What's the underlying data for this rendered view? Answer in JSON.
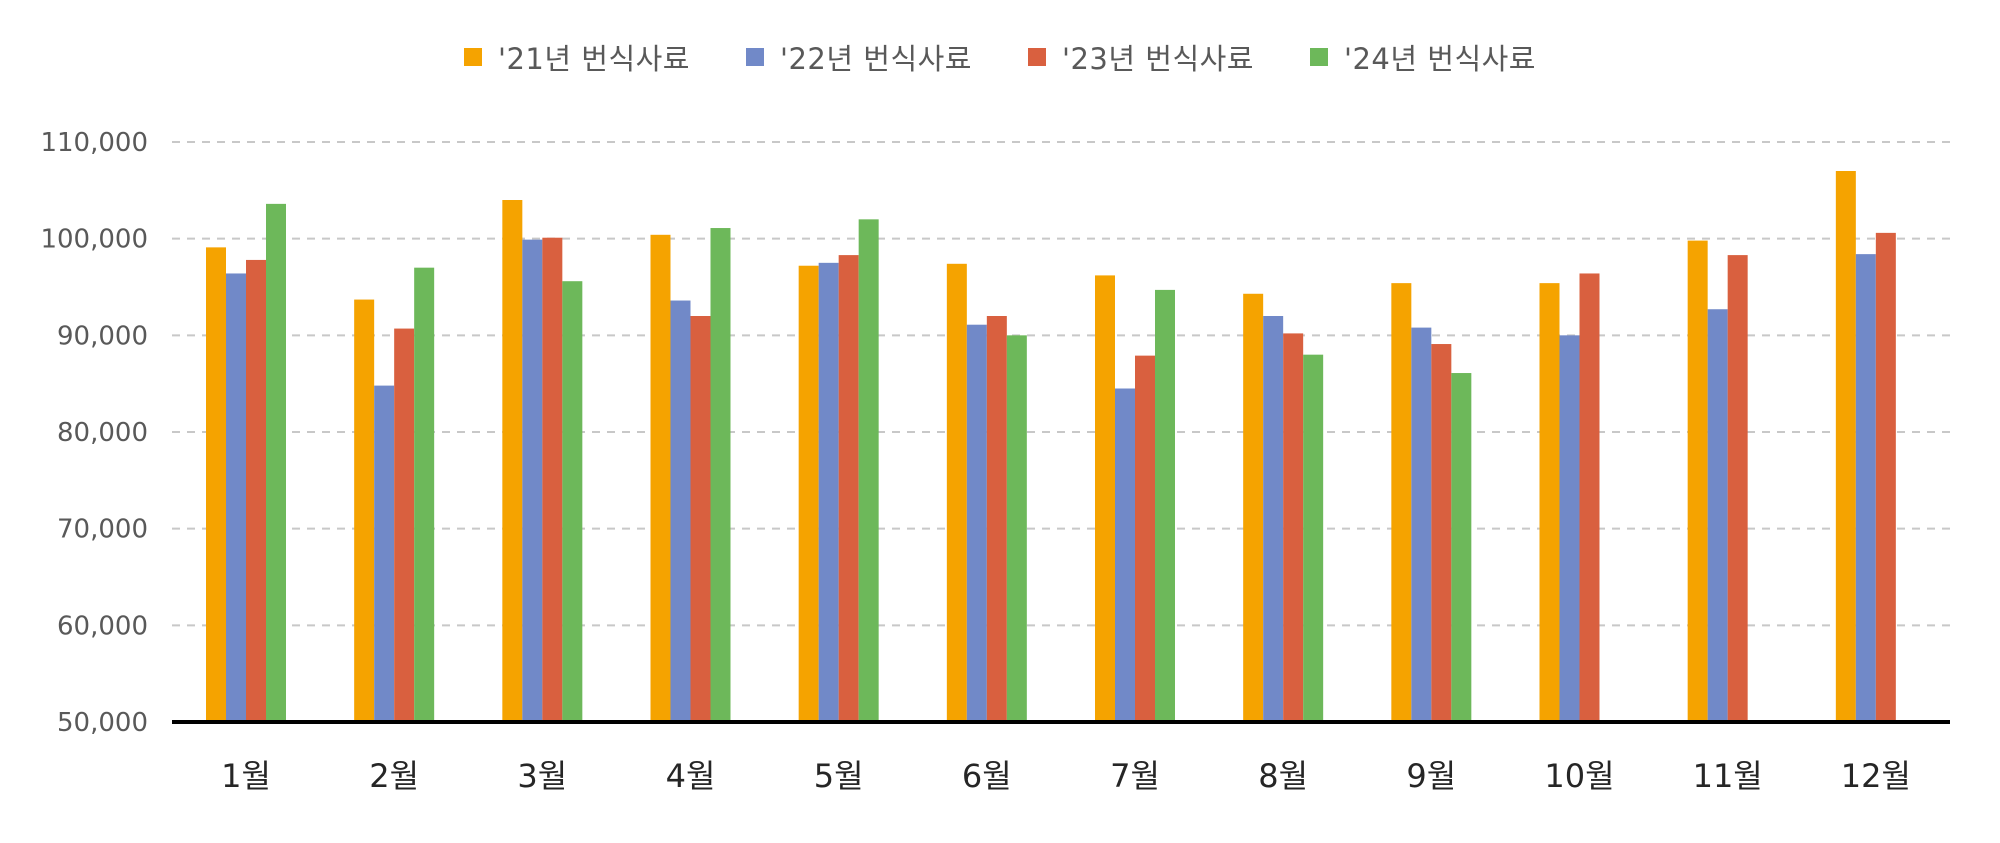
{
  "chart_data": {
    "type": "bar",
    "categories": [
      "1월",
      "2월",
      "3월",
      "4월",
      "5월",
      "6월",
      "7월",
      "8월",
      "9월",
      "10월",
      "11월",
      "12월"
    ],
    "series": [
      {
        "name": "'21년 번식사료",
        "color": "#F5A300",
        "values": [
          99100,
          93700,
          104000,
          100400,
          97200,
          97400,
          96200,
          94300,
          95400,
          95400,
          99800,
          107000
        ]
      },
      {
        "name": "'22년 번식사료",
        "color": "#7189C8",
        "values": [
          96400,
          84800,
          99900,
          93600,
          97500,
          91100,
          84500,
          92000,
          90800,
          90000,
          92700,
          98400
        ]
      },
      {
        "name": "'23년 번식사료",
        "color": "#D9603F",
        "values": [
          97800,
          90700,
          100100,
          92000,
          98300,
          92000,
          87900,
          90200,
          89100,
          96400,
          98300,
          100600
        ]
      },
      {
        "name": "'24년 번식사료",
        "color": "#6DB85A",
        "values": [
          103600,
          97000,
          95600,
          101100,
          102000,
          90000,
          94700,
          88000,
          86100,
          null,
          null,
          null
        ]
      }
    ],
    "y_ticks": [
      "50,000",
      "60,000",
      "70,000",
      "80,000",
      "90,000",
      "100,000",
      "110,000"
    ],
    "ylim": [
      50000,
      110000
    ],
    "grid": true,
    "legend_position": "top-center",
    "title": "",
    "xlabel": "",
    "ylabel": ""
  }
}
